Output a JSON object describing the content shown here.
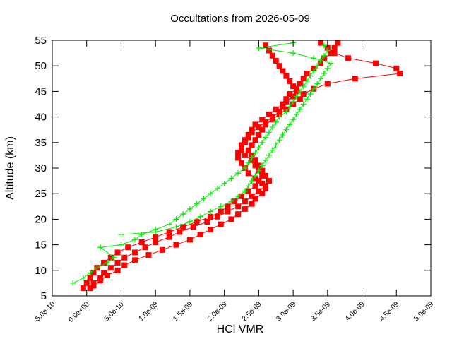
{
  "chart_data": {
    "type": "line",
    "title": "Occultations from 2026-05-09",
    "xlabel": "HCl VMR",
    "ylabel": "Altitude (km)",
    "xlim": [
      -5e-10,
      5e-09
    ],
    "ylim": [
      5,
      55
    ],
    "x_ticks": [
      {
        "value": -5e-10,
        "label": "-5.0e-10"
      },
      {
        "value": 0,
        "label": "0.0e+00"
      },
      {
        "value": 5e-10,
        "label": "5.0e-10"
      },
      {
        "value": 1e-09,
        "label": "1.0e-09"
      },
      {
        "value": 1.5e-09,
        "label": "1.5e-09"
      },
      {
        "value": 2e-09,
        "label": "2.0e-09"
      },
      {
        "value": 2.5e-09,
        "label": "2.5e-09"
      },
      {
        "value": 3e-09,
        "label": "3.0e-09"
      },
      {
        "value": 3.5e-09,
        "label": "3.5e-09"
      },
      {
        "value": 4e-09,
        "label": "4.0e-09"
      },
      {
        "value": 4.5e-09,
        "label": "4.5e-09"
      },
      {
        "value": 5e-09,
        "label": "5.0e-09"
      }
    ],
    "y_ticks": [
      {
        "value": 5,
        "label": "5"
      },
      {
        "value": 10,
        "label": "10"
      },
      {
        "value": 15,
        "label": "15"
      },
      {
        "value": 20,
        "label": "20"
      },
      {
        "value": 25,
        "label": "25"
      },
      {
        "value": 30,
        "label": "30"
      },
      {
        "value": 35,
        "label": "35"
      },
      {
        "value": 40,
        "label": "40"
      },
      {
        "value": 45,
        "label": "45"
      },
      {
        "value": 50,
        "label": "50"
      },
      {
        "value": 55,
        "label": "55"
      }
    ],
    "grid": false,
    "legend": "none",
    "series": [
      {
        "color": "#ff0000",
        "marker": "square",
        "points": [
          [
            -5e-11,
            6.5
          ],
          [
            0.0,
            7.5
          ],
          [
            5e-11,
            8.5
          ],
          [
            1e-10,
            9.5
          ],
          [
            1.5e-10,
            10.5
          ],
          [
            2.5e-10,
            11.5
          ],
          [
            3.5e-10,
            12.5
          ],
          [
            4.5e-10,
            13.5
          ],
          [
            6e-10,
            14.5
          ],
          [
            8e-10,
            15.5
          ],
          [
            1e-09,
            16.5
          ],
          [
            1.2e-09,
            17.5
          ],
          [
            1.4e-09,
            18.5
          ],
          [
            1.6e-09,
            19.5
          ],
          [
            1.8e-09,
            20.5
          ],
          [
            1.95e-09,
            21.5
          ],
          [
            2.05e-09,
            22.5
          ],
          [
            2.15e-09,
            23.5
          ],
          [
            2.25e-09,
            24.5
          ],
          [
            2.35e-09,
            25.5
          ],
          [
            2.45e-09,
            26.5
          ],
          [
            2.5e-09,
            27.5
          ],
          [
            2.55e-09,
            28.5
          ],
          [
            2.5e-09,
            29.5
          ],
          [
            2.45e-09,
            30.5
          ],
          [
            2.4e-09,
            31.5
          ],
          [
            2.3e-09,
            32.5
          ],
          [
            2.25e-09,
            33.5
          ],
          [
            2.25e-09,
            34.5
          ],
          [
            2.3e-09,
            35.5
          ],
          [
            2.35e-09,
            36.5
          ],
          [
            2.4e-09,
            37.5
          ],
          [
            2.45e-09,
            38.5
          ],
          [
            2.55e-09,
            39.5
          ],
          [
            2.65e-09,
            40.5
          ],
          [
            2.75e-09,
            41.5
          ],
          [
            2.85e-09,
            42.5
          ],
          [
            2.9e-09,
            43.5
          ],
          [
            2.95e-09,
            44.5
          ],
          [
            3.05e-09,
            45.5
          ],
          [
            3.1e-09,
            46.5
          ],
          [
            3.15e-09,
            47.5
          ],
          [
            3.2e-09,
            48.5
          ],
          [
            3.3e-09,
            49.5
          ],
          [
            3.4e-09,
            50.5
          ],
          [
            3.45e-09,
            51.5
          ],
          [
            3.55e-09,
            52.5
          ],
          [
            3.6e-09,
            53.5
          ],
          [
            3.65e-09,
            54.5
          ]
        ],
        "points_b": [
          [
            5e-11,
            6.5
          ],
          [
            1e-10,
            7.5
          ],
          [
            2e-10,
            8.5
          ],
          [
            2.5e-10,
            9.5
          ],
          [
            3.5e-10,
            10.5
          ],
          [
            4.5e-10,
            11.5
          ],
          [
            5.5e-10,
            12.5
          ],
          [
            7e-10,
            13.5
          ],
          [
            8.5e-10,
            14.5
          ],
          [
            1e-09,
            15.5
          ],
          [
            1.2e-09,
            16.5
          ],
          [
            1.35e-09,
            17.5
          ],
          [
            1.55e-09,
            18.5
          ],
          [
            1.75e-09,
            19.5
          ],
          [
            1.9e-09,
            20.5
          ],
          [
            2.05e-09,
            21.5
          ],
          [
            2.2e-09,
            22.5
          ],
          [
            2.3e-09,
            23.5
          ],
          [
            2.4e-09,
            24.5
          ],
          [
            2.5e-09,
            25.5
          ],
          [
            2.6e-09,
            26.5
          ],
          [
            2.65e-09,
            27.5
          ],
          [
            2.6e-09,
            28.5
          ],
          [
            2.55e-09,
            29.5
          ],
          [
            2.5e-09,
            30.5
          ],
          [
            2.45e-09,
            31.5
          ],
          [
            2.4e-09,
            32.5
          ],
          [
            2.35e-09,
            33.5
          ],
          [
            2.4e-09,
            34.5
          ],
          [
            2.45e-09,
            35.5
          ],
          [
            2.5e-09,
            36.5
          ],
          [
            2.55e-09,
            37.5
          ],
          [
            2.6e-09,
            38.5
          ],
          [
            2.7e-09,
            39.5
          ],
          [
            2.8e-09,
            40.5
          ],
          [
            2.9e-09,
            41.5
          ],
          [
            3e-09,
            42.5
          ],
          [
            3.1e-09,
            43.5
          ],
          [
            3.15e-09,
            44.5
          ],
          [
            3.3e-09,
            45.5
          ],
          [
            3.5e-09,
            46.5
          ],
          [
            3.9e-09,
            47.5
          ],
          [
            4.55e-09,
            48.5
          ],
          [
            4.5e-09,
            49.5
          ],
          [
            4.2e-09,
            50.5
          ],
          [
            3.8e-09,
            51.5
          ],
          [
            3.6e-09,
            52.5
          ],
          [
            3.5e-09,
            53.5
          ],
          [
            3.4e-09,
            54.5
          ]
        ],
        "points_c": [
          [
            1e-10,
            7.0
          ],
          [
            2e-10,
            8.0
          ],
          [
            3e-10,
            9.0
          ],
          [
            4.5e-10,
            10.0
          ],
          [
            5.5e-10,
            11.0
          ],
          [
            7e-10,
            12.0
          ],
          [
            9e-10,
            13.0
          ],
          [
            1.1e-09,
            14.0
          ],
          [
            1.3e-09,
            15.0
          ],
          [
            1.5e-09,
            16.0
          ],
          [
            1.65e-09,
            17.0
          ],
          [
            1.8e-09,
            18.0
          ],
          [
            1.95e-09,
            19.0
          ],
          [
            2.1e-09,
            20.0
          ],
          [
            2.2e-09,
            21.0
          ],
          [
            2.3e-09,
            22.0
          ],
          [
            2.4e-09,
            23.0
          ],
          [
            2.45e-09,
            24.0
          ],
          [
            2.55e-09,
            25.0
          ],
          [
            2.6e-09,
            26.0
          ],
          [
            2.55e-09,
            27.0
          ],
          [
            2.45e-09,
            28.0
          ],
          [
            2.35e-09,
            29.0
          ],
          [
            2.3e-09,
            30.0
          ],
          [
            2.25e-09,
            31.0
          ],
          [
            2.2e-09,
            32.0
          ],
          [
            2.2e-09,
            33.0
          ],
          [
            2.25e-09,
            34.0
          ],
          [
            2.3e-09,
            35.0
          ],
          [
            2.35e-09,
            36.0
          ],
          [
            2.4e-09,
            37.0
          ],
          [
            2.5e-09,
            38.0
          ],
          [
            2.6e-09,
            39.0
          ],
          [
            2.7e-09,
            40.0
          ],
          [
            2.8e-09,
            41.0
          ],
          [
            2.85e-09,
            42.0
          ],
          [
            2.9e-09,
            43.0
          ],
          [
            3e-09,
            44.0
          ],
          [
            3.05e-09,
            45.0
          ],
          [
            3e-09,
            46.0
          ],
          [
            2.95e-09,
            47.0
          ],
          [
            2.9e-09,
            48.0
          ],
          [
            2.85e-09,
            49.0
          ],
          [
            2.8e-09,
            50.0
          ],
          [
            2.75e-09,
            51.0
          ],
          [
            2.7e-09,
            52.0
          ],
          [
            2.65e-09,
            53.0
          ],
          [
            2.6e-09,
            54.0
          ]
        ]
      },
      {
        "color": "#00ee00",
        "marker": "plus",
        "points": [
          [
            -2e-10,
            7.5
          ],
          [
            -5e-11,
            8.5
          ],
          [
            5e-11,
            9.5
          ],
          [
            1.5e-10,
            10.5
          ],
          [
            3e-10,
            11.5
          ],
          [
            4e-10,
            12.5
          ],
          [
            2e-10,
            14.5
          ],
          [
            5e-10,
            15.0
          ],
          [
            7e-10,
            16.0
          ],
          [
            8e-10,
            17.0
          ],
          [
            1e-09,
            18.0
          ],
          [
            1.2e-09,
            19.0
          ],
          [
            1.3e-09,
            20.0
          ],
          [
            1.4e-09,
            21.0
          ],
          [
            1.5e-09,
            22.0
          ],
          [
            1.6e-09,
            23.0
          ],
          [
            1.7e-09,
            24.0
          ],
          [
            1.8e-09,
            25.0
          ],
          [
            1.9e-09,
            26.0
          ],
          [
            2e-09,
            27.0
          ],
          [
            2.1e-09,
            28.0
          ],
          [
            2.2e-09,
            29.0
          ],
          [
            2.3e-09,
            30.0
          ],
          [
            2.35e-09,
            31.0
          ],
          [
            2.4e-09,
            32.0
          ],
          [
            2.45e-09,
            33.0
          ],
          [
            2.5e-09,
            34.0
          ],
          [
            2.55e-09,
            35.0
          ],
          [
            2.6e-09,
            36.0
          ],
          [
            2.65e-09,
            37.0
          ],
          [
            2.7e-09,
            38.0
          ],
          [
            2.75e-09,
            39.0
          ],
          [
            2.8e-09,
            40.0
          ],
          [
            2.9e-09,
            41.0
          ],
          [
            2.95e-09,
            42.0
          ],
          [
            3e-09,
            43.0
          ],
          [
            3.05e-09,
            44.0
          ],
          [
            3.1e-09,
            45.0
          ],
          [
            3.15e-09,
            46.0
          ],
          [
            3.2e-09,
            47.0
          ],
          [
            3.25e-09,
            48.0
          ],
          [
            3.3e-09,
            49.0
          ],
          [
            3.35e-09,
            50.0
          ],
          [
            3.4e-09,
            51.0
          ],
          [
            3.45e-09,
            52.0
          ],
          [
            3.5e-09,
            53.0
          ],
          [
            3.45e-09,
            54.0
          ]
        ],
        "points_b": [
          [
            5e-10,
            17.0
          ],
          [
            1e-09,
            17.5
          ],
          [
            1.3e-09,
            18.5
          ],
          [
            1.5e-09,
            19.5
          ],
          [
            1.65e-09,
            20.5
          ],
          [
            1.8e-09,
            21.5
          ],
          [
            1.95e-09,
            22.5
          ],
          [
            2.1e-09,
            23.5
          ],
          [
            2.2e-09,
            24.5
          ],
          [
            2.3e-09,
            25.5
          ],
          [
            2.35e-09,
            26.5
          ],
          [
            2.4e-09,
            27.5
          ],
          [
            2.45e-09,
            28.5
          ],
          [
            2.5e-09,
            29.5
          ],
          [
            2.55e-09,
            30.5
          ],
          [
            2.6e-09,
            31.5
          ],
          [
            2.65e-09,
            32.5
          ],
          [
            2.7e-09,
            33.5
          ],
          [
            2.75e-09,
            34.5
          ],
          [
            2.8e-09,
            35.5
          ],
          [
            2.85e-09,
            36.5
          ],
          [
            2.9e-09,
            37.5
          ],
          [
            2.95e-09,
            38.5
          ],
          [
            3e-09,
            39.5
          ],
          [
            3.05e-09,
            40.5
          ],
          [
            3.1e-09,
            41.5
          ],
          [
            3.15e-09,
            42.5
          ],
          [
            3.2e-09,
            43.5
          ],
          [
            3.25e-09,
            44.5
          ],
          [
            3.3e-09,
            45.5
          ],
          [
            3.35e-09,
            46.5
          ],
          [
            3.4e-09,
            47.5
          ],
          [
            3.45e-09,
            48.5
          ],
          [
            3.5e-09,
            49.5
          ],
          [
            3.55e-09,
            50.5
          ],
          [
            3.3e-09,
            51.5
          ],
          [
            3e-09,
            52.5
          ],
          [
            2.5e-09,
            53.5
          ],
          [
            3e-09,
            54.5
          ]
        ]
      }
    ]
  }
}
